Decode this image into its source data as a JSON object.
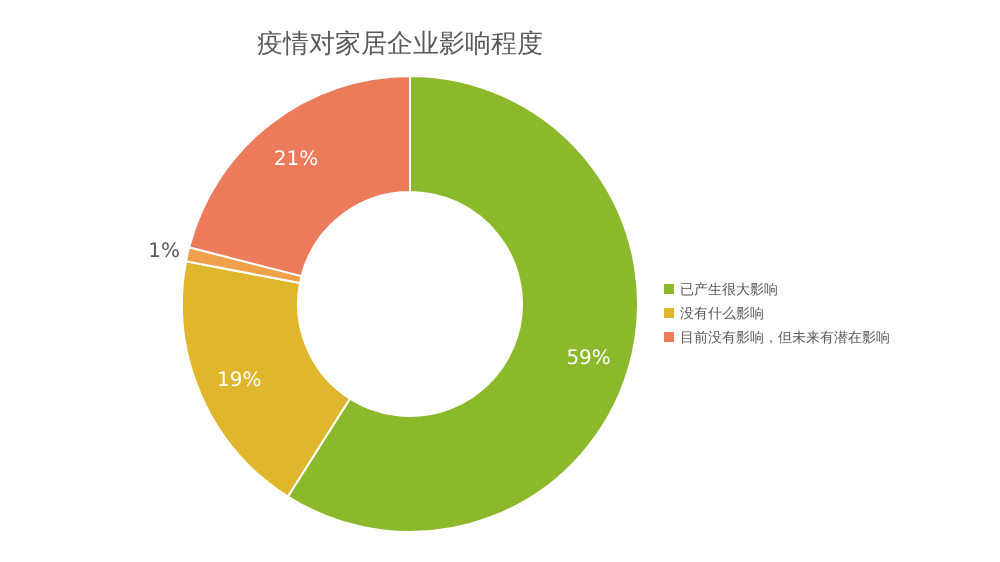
{
  "chart_data": {
    "type": "donut",
    "title": "疫情对家居企业影响程度",
    "categories": [
      "已产生很大影响",
      "没有什么影响",
      null,
      "目前没有影响，但未来有潜在影响"
    ],
    "values": [
      59,
      19,
      1,
      21
    ],
    "colors": [
      "#8cb82b",
      "#e0b62c",
      "#f0a04a",
      "#ec7b5b"
    ],
    "value_labels": [
      "59%",
      "19%",
      "1%",
      "21%"
    ],
    "legend": "right"
  }
}
